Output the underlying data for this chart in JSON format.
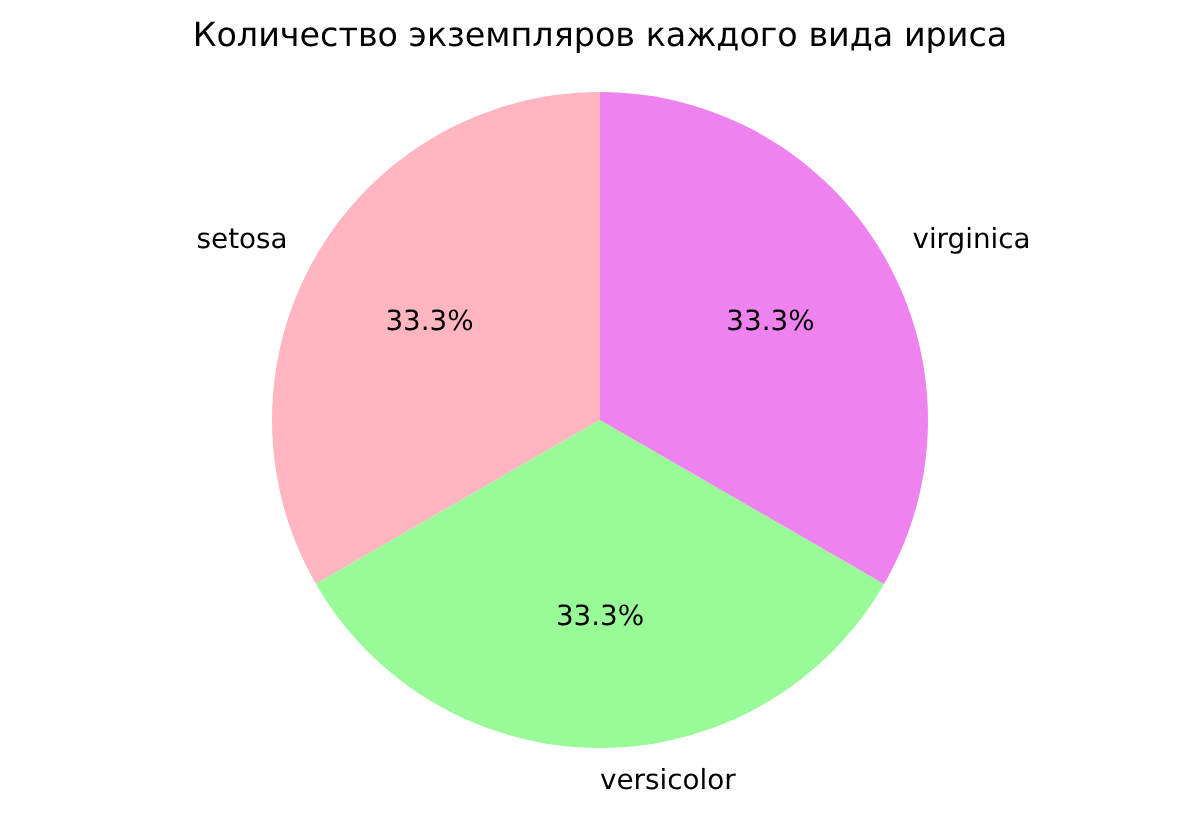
{
  "chart_data": {
    "type": "pie",
    "title": "Количество экземпляров каждого вида ириса",
    "categories": [
      "setosa",
      "versicolor",
      "virginica"
    ],
    "values": [
      33.3,
      33.3,
      33.3
    ],
    "colors": [
      "#ffb6c1",
      "#98fb98",
      "#ee82ee"
    ],
    "value_labels": [
      "33.3%",
      "33.3%",
      "33.3%"
    ]
  }
}
